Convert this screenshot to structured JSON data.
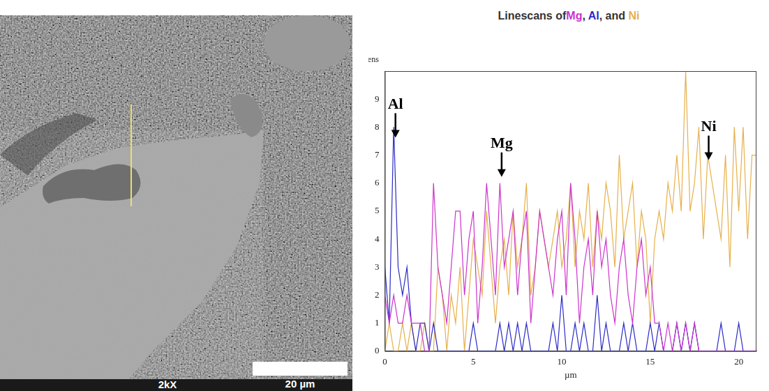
{
  "chart_data": {
    "type": "line",
    "title": "Linescans ofMg, Al, and Ni",
    "x_label": "µm",
    "y_label": "Intens",
    "x": [
      0,
      0.25,
      0.5,
      0.75,
      1,
      1.25,
      1.5,
      1.75,
      2,
      2.25,
      2.5,
      2.75,
      3,
      3.25,
      3.5,
      3.75,
      4,
      4.25,
      4.5,
      4.75,
      5,
      5.25,
      5.5,
      5.75,
      6,
      6.25,
      6.5,
      6.75,
      7,
      7.25,
      7.5,
      7.75,
      8,
      8.25,
      8.5,
      8.75,
      9,
      9.25,
      9.5,
      9.75,
      10,
      10.25,
      10.5,
      10.75,
      11,
      11.25,
      11.5,
      11.75,
      12,
      12.25,
      12.5,
      12.75,
      13,
      13.25,
      13.5,
      13.75,
      14,
      14.25,
      14.5,
      14.75,
      15,
      15.25,
      15.5,
      15.75,
      16,
      16.25,
      16.5,
      16.75,
      17,
      17.25,
      17.5,
      17.75,
      18,
      18.25,
      18.5,
      18.75,
      19,
      19.25,
      19.5,
      19.75,
      20,
      20.25,
      20.5,
      20.75,
      21
    ],
    "series": [
      {
        "name": "Mg",
        "color": "#cc33cc",
        "values": [
          2,
          1,
          2,
          1,
          1,
          2,
          1,
          1,
          1,
          0,
          0,
          6,
          3,
          2,
          1,
          3,
          5,
          5,
          2,
          4,
          5,
          1,
          3,
          6,
          4,
          2,
          6,
          3,
          4,
          5,
          2,
          4,
          5,
          1,
          3,
          5,
          4,
          3,
          2,
          4,
          5,
          2,
          6,
          4,
          1,
          3,
          4,
          2,
          5,
          3,
          4,
          2,
          1,
          3,
          4,
          2,
          1,
          3,
          4,
          2,
          3,
          1,
          1,
          0,
          1,
          0,
          1,
          0,
          1,
          0,
          1,
          0,
          0,
          0,
          0,
          0,
          0,
          0,
          0,
          0,
          0,
          0,
          0,
          0,
          0
        ]
      },
      {
        "name": "Al",
        "color": "#2a2ac8",
        "values": [
          3,
          1,
          8,
          3,
          2,
          3,
          1,
          0,
          1,
          1,
          0,
          1,
          0,
          0,
          0,
          0,
          0,
          0,
          0,
          0,
          1,
          0,
          0,
          0,
          0,
          0,
          1,
          0,
          1,
          0,
          1,
          0,
          1,
          0,
          0,
          0,
          0,
          0,
          1,
          0,
          2,
          0,
          0,
          1,
          0,
          1,
          0,
          0,
          2,
          0,
          1,
          0,
          0,
          0,
          1,
          0,
          1,
          0,
          0,
          0,
          1,
          0,
          1,
          0,
          0,
          0,
          1,
          0,
          1,
          0,
          1,
          0,
          0,
          0,
          0,
          0,
          1,
          0,
          0,
          0,
          1,
          0,
          0,
          0,
          0
        ]
      },
      {
        "name": "Ni",
        "color": "#e6b04a",
        "values": [
          0,
          1,
          0,
          0,
          1,
          0,
          1,
          0,
          0,
          1,
          0,
          0,
          3,
          2,
          0,
          2,
          1,
          3,
          0,
          2,
          4,
          3,
          2,
          5,
          3,
          1,
          3,
          4,
          2,
          5,
          3,
          4,
          6,
          2,
          3,
          5,
          4,
          3,
          4,
          5,
          3,
          4,
          6,
          3,
          5,
          4,
          6,
          3,
          5,
          4,
          6,
          5,
          3,
          7,
          4,
          5,
          6,
          3,
          5,
          4,
          1,
          4,
          5,
          4,
          6,
          5,
          7,
          5,
          10,
          5,
          6,
          8,
          4,
          7,
          6,
          5,
          4,
          7,
          3,
          8,
          5,
          8,
          4,
          7,
          7
        ]
      }
    ],
    "xlim": [
      0,
      21
    ],
    "xticks": [
      0,
      5,
      10,
      15,
      20
    ],
    "ylim": [
      0,
      10
    ],
    "yticks": [
      0,
      1,
      2,
      3,
      4,
      5,
      6,
      7,
      8,
      9
    ],
    "grid": false,
    "annotations": [
      {
        "text": "Al",
        "x": 0.6,
        "y": 7.6
      },
      {
        "text": "Mg",
        "x": 6.6,
        "y": 6.2
      },
      {
        "text": "Ni",
        "x": 18.3,
        "y": 6.8
      }
    ]
  },
  "micrograph": {
    "magnification": "2kX",
    "scale_bar": "20 µm"
  }
}
